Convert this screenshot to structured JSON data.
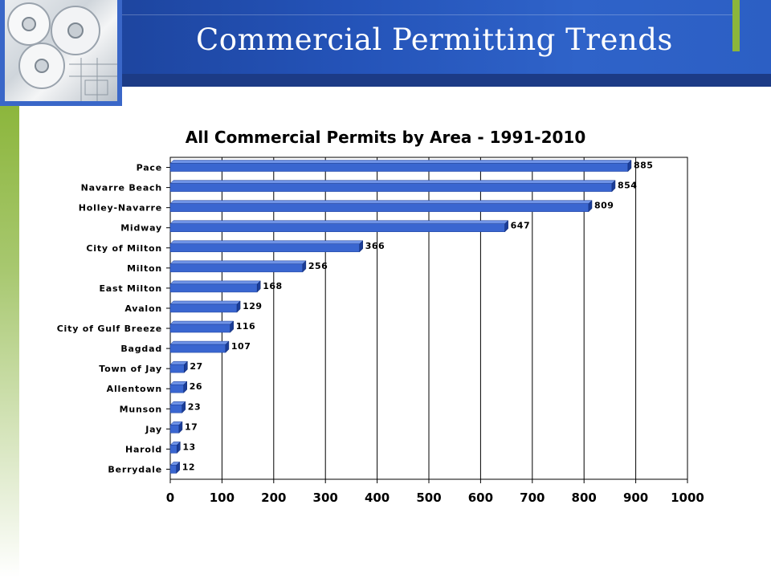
{
  "slide": {
    "title": "Commercial Permitting Trends"
  },
  "colors": {
    "banner": "#2453b8",
    "accent": "#8cb63c",
    "bar": "#3a66d0",
    "bar_side": "#1b3d98"
  },
  "chart_data": {
    "type": "bar",
    "orientation": "horizontal",
    "title": "All Commercial Permits by Area - 1991-2010",
    "xlabel": "",
    "ylabel": "",
    "xlim": [
      0,
      1000
    ],
    "xticks": [
      0,
      100,
      200,
      300,
      400,
      500,
      600,
      700,
      800,
      900,
      1000
    ],
    "grid": true,
    "categories": [
      "Pace",
      "Navarre Beach",
      "Holley-Navarre",
      "Midway",
      "City of Milton",
      "Milton",
      "East Milton",
      "Avalon",
      "City of Gulf Breeze",
      "Bagdad",
      "Town of Jay",
      "Allentown",
      "Munson",
      "Jay",
      "Harold",
      "Berrydale"
    ],
    "values": [
      885,
      854,
      809,
      647,
      366,
      256,
      168,
      129,
      116,
      107,
      27,
      26,
      23,
      17,
      13,
      12
    ]
  }
}
